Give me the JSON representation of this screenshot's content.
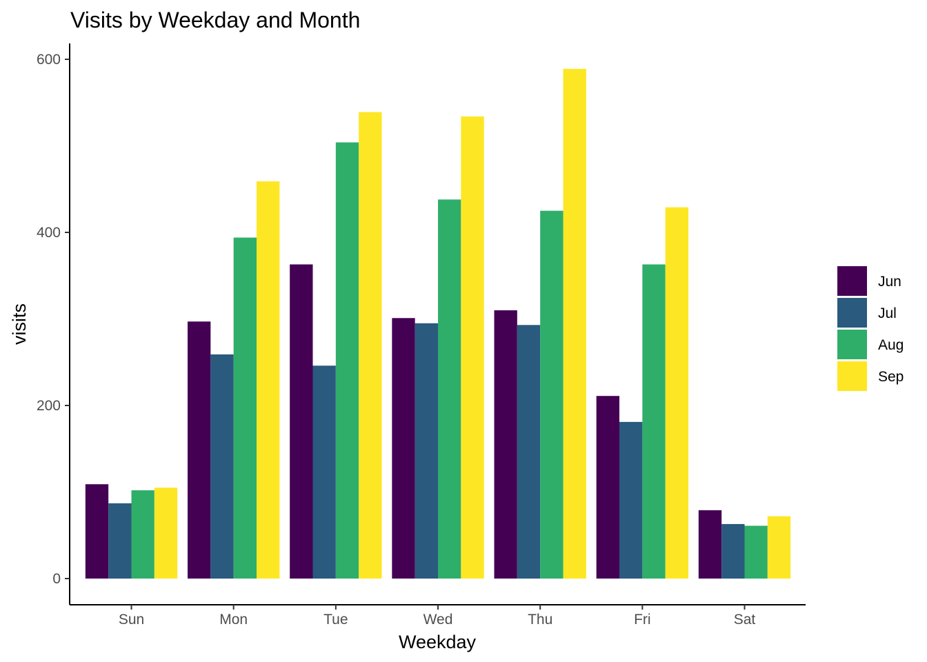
{
  "chart_data": {
    "type": "bar",
    "title": "Visits by Weekday and Month",
    "xlabel": "Weekday",
    "ylabel": "visits",
    "categories": [
      "Sun",
      "Mon",
      "Tue",
      "Wed",
      "Thu",
      "Fri",
      "Sat"
    ],
    "ylim": [
      0,
      600
    ],
    "yticks": [
      0,
      200,
      400,
      600
    ],
    "grid": false,
    "legend_position": "right",
    "series": [
      {
        "name": "Jun",
        "color": "#440154",
        "values": [
          109,
          297,
          363,
          301,
          310,
          211,
          79
        ]
      },
      {
        "name": "Jul",
        "color": "#2A5A7E",
        "values": [
          87,
          259,
          246,
          295,
          293,
          181,
          63
        ]
      },
      {
        "name": "Aug",
        "color": "#2FAE6A",
        "values": [
          102,
          394,
          504,
          438,
          425,
          363,
          61
        ]
      },
      {
        "name": "Sep",
        "color": "#FDE725",
        "values": [
          105,
          459,
          539,
          534,
          589,
          429,
          72
        ]
      }
    ]
  }
}
